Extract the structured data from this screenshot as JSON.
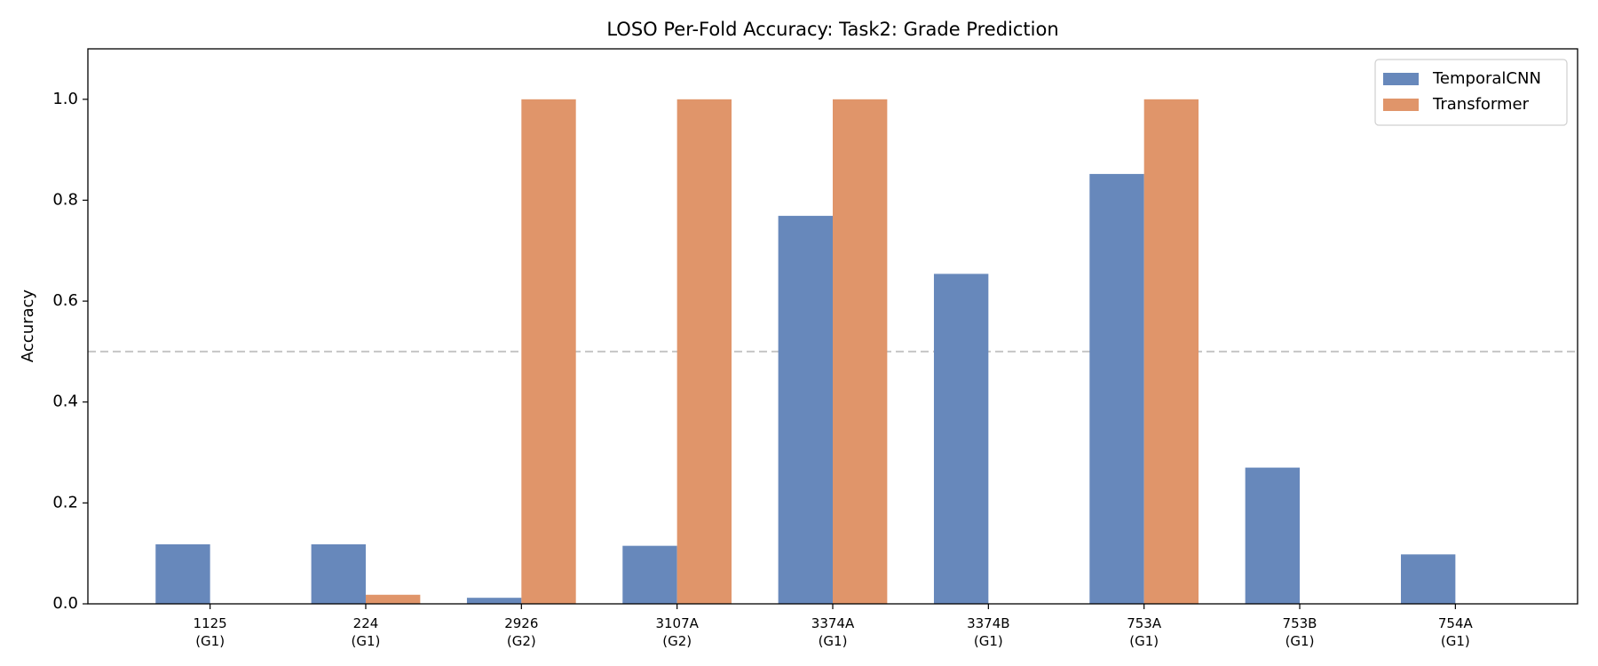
{
  "chart_data": {
    "type": "bar",
    "title": "LOSO Per-Fold Accuracy: Task2: Grade Prediction",
    "ylabel": "Accuracy",
    "categories": [
      "1125\n(G1)",
      "224\n(G1)",
      "2926\n(G2)",
      "3107A\n(G2)",
      "3374A\n(G1)",
      "3374B\n(G1)",
      "753A\n(G1)",
      "753B\n(G1)",
      "754A\n(G1)"
    ],
    "series": [
      {
        "name": "TemporalCNN",
        "color": "#6788bb",
        "values": [
          0.118,
          0.118,
          0.012,
          0.115,
          0.769,
          0.654,
          0.852,
          0.27,
          0.098
        ]
      },
      {
        "name": "Transformer",
        "color": "#e0956a",
        "values": [
          0,
          0.018,
          1,
          1,
          1,
          0,
          1,
          0,
          0
        ]
      }
    ],
    "ylim": [
      0,
      1.1
    ],
    "yticks": [
      {
        "value": 0,
        "label": "0.0"
      },
      0.2,
      0.4,
      0.6,
      0.8,
      {
        "value": 1,
        "label": "1.0"
      }
    ],
    "hline": 0.5,
    "legend": "upper-right"
  }
}
